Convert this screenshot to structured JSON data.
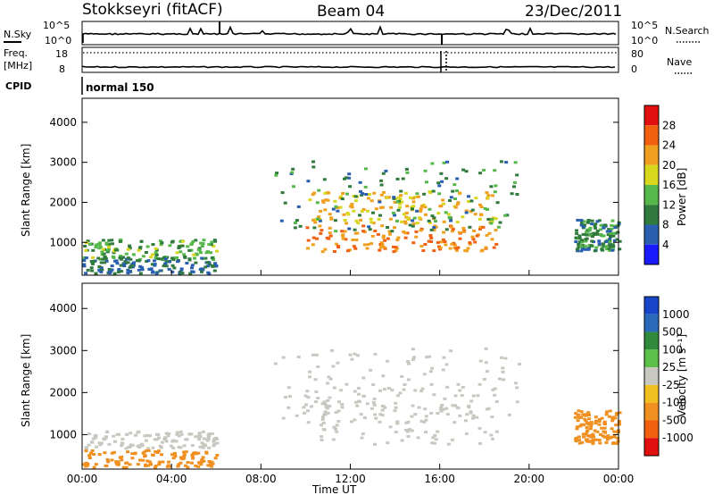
{
  "header": {
    "station": "Stokkseyri (fitACF)",
    "beam": "Beam 04",
    "date": "23/Dec/2011"
  },
  "top_panels": {
    "nsky_label": "N.Sky",
    "nsky_ticks": [
      "10^5",
      "10^0"
    ],
    "nsearch_label": "N.Search",
    "nsearch_ticks": [
      "10^5",
      "10^0"
    ],
    "freq_label": "Freq.",
    "freq_unit": "[MHz]",
    "freq_ticks": [
      "18",
      "8"
    ],
    "nave_label": "Nave",
    "nave_ticks": [
      "80",
      "0"
    ],
    "cpid_label": "CPID",
    "cpid_value": "normal 150"
  },
  "colors": {
    "power_scale": [
      "#1a1aff",
      "#2a5fb0",
      "#2f7a3c",
      "#56b84a",
      "#d7d71e",
      "#f0a020",
      "#f06010",
      "#e01010"
    ],
    "velocity_scale": [
      "#1846c8",
      "#2a6ab8",
      "#2f8a3c",
      "#5cc04a",
      "#c8c8c0",
      "#f0c020",
      "#f09020",
      "#f06010",
      "#e01010"
    ],
    "scatter_gray": "#c8c8c0"
  },
  "chart_data": [
    {
      "type": "heatmap",
      "panel": "power",
      "ylabel": "Slant Range [km]",
      "yticks": [
        "1000",
        "2000",
        "3000",
        "4000"
      ],
      "ylim": [
        180,
        4600
      ],
      "xlim": [
        0,
        24
      ],
      "colorbar_label": "Power [dB]",
      "colorbar_ticks": [
        "4",
        "8",
        "12",
        "16",
        "20",
        "24",
        "28"
      ],
      "colorbar_range": [
        0,
        32
      ],
      "regions": [
        {
          "t": [
            0.0,
            6.0
          ],
          "r": [
            600,
            1100
          ],
          "value": 13
        },
        {
          "t": [
            0.0,
            6.0
          ],
          "r": [
            250,
            650
          ],
          "value": 8
        },
        {
          "t": [
            10.0,
            18.5
          ],
          "r": [
            800,
            1450
          ],
          "value": 24
        },
        {
          "t": [
            10.0,
            18.5
          ],
          "r": [
            1500,
            2300
          ],
          "value": 20
        },
        {
          "t": [
            8.5,
            19.5
          ],
          "r": [
            1300,
            3100
          ],
          "value": 10
        },
        {
          "t": [
            22.0,
            24.0
          ],
          "r": [
            800,
            1600
          ],
          "value": 10
        }
      ]
    },
    {
      "type": "heatmap",
      "panel": "velocity",
      "ylabel": "Slant Range [km]",
      "xlabel": "Time UT",
      "xticks": [
        "00:00",
        "04:00",
        "08:00",
        "12:00",
        "16:00",
        "20:00",
        "00:00"
      ],
      "yticks": [
        "1000",
        "2000",
        "3000",
        "4000"
      ],
      "ylim": [
        180,
        4600
      ],
      "xlim": [
        0,
        24
      ],
      "colorbar_label": "Velocity [m s⁻¹]",
      "colorbar_ticks": [
        "1000",
        "500",
        "100",
        "25",
        "-25",
        "-100",
        "-500",
        "-1000"
      ],
      "regions": [
        {
          "t": [
            0.0,
            6.0
          ],
          "r": [
            700,
            1100
          ],
          "value": 0
        },
        {
          "t": [
            0.0,
            6.0
          ],
          "r": [
            250,
            650
          ],
          "value": -200
        },
        {
          "t": [
            10.0,
            18.5
          ],
          "r": [
            800,
            2300
          ],
          "value": 0
        },
        {
          "t": [
            8.5,
            19.5
          ],
          "r": [
            1300,
            3100
          ],
          "value": 0
        },
        {
          "t": [
            22.0,
            24.0
          ],
          "r": [
            800,
            1600
          ],
          "value": -400
        }
      ]
    }
  ]
}
